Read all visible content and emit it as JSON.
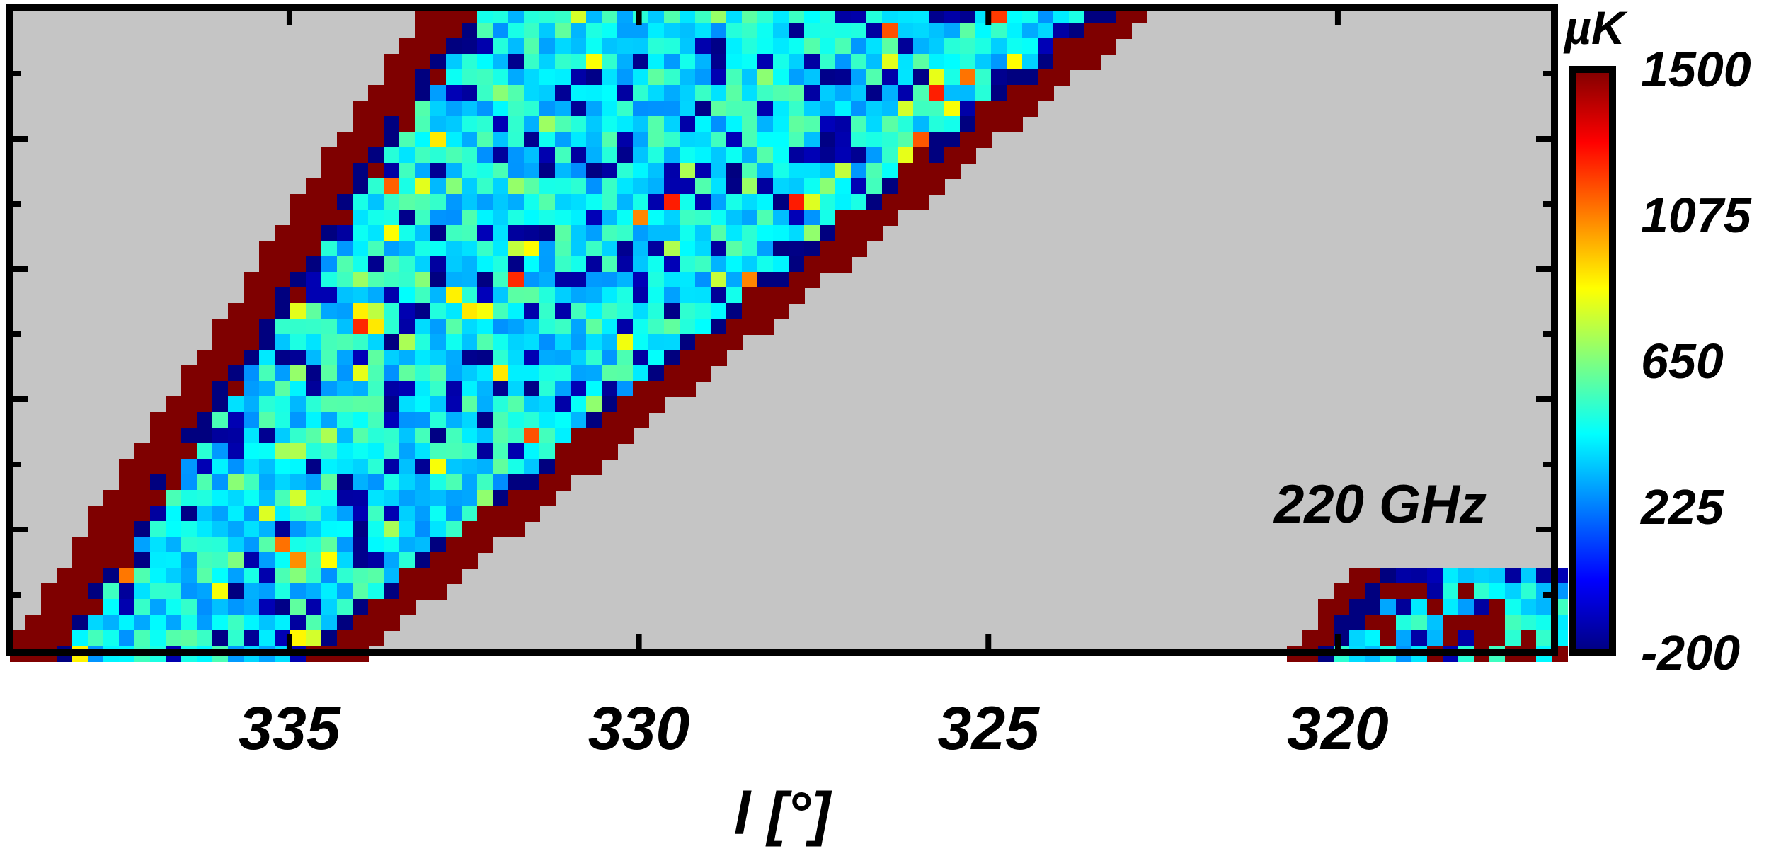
{
  "chart_data": {
    "type": "heatmap",
    "title": "",
    "annotation": "220 GHz",
    "xlabel": "l [°]",
    "ylabel": "",
    "x_range": [
      339.0,
      316.9
    ],
    "x_reversed": true,
    "x_ticks": [
      "335",
      "330",
      "325",
      "320"
    ],
    "colorbar": {
      "unit": "µK",
      "range": [
        -200,
        1500
      ],
      "ticks": [
        "1500",
        "1075",
        "650",
        "225",
        "-200"
      ],
      "colormap": "jet",
      "colors": [
        "#00007f",
        "#0000ff",
        "#007fff",
        "#00ffff",
        "#7fff7f",
        "#ffff00",
        "#ff7f00",
        "#ff0000",
        "#7f0000"
      ]
    },
    "background_color": "#c5c5c5",
    "observed_strip": {
      "description_values_uK": {
        "edge_stripe": 1500,
        "inner_edge": -200,
        "interior_typical": 450
      },
      "edges": [
        {
          "x_at_top": 333.0,
          "x_at_bottom": 339.0
        },
        {
          "x_at_top": 322.6,
          "x_at_bottom": 334.0
        }
      ]
    },
    "secondary_patch": {
      "x_range": [
        320.7,
        316.9
      ]
    }
  }
}
